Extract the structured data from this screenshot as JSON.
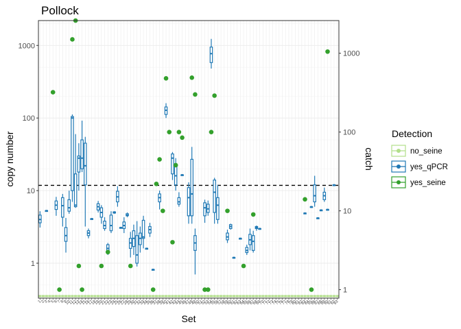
{
  "chart_data": {
    "type": "box",
    "title": "Pollock",
    "xlabel": "Set",
    "ylabel": "copy number",
    "y2label": "catch",
    "y_scale": "log10",
    "ylim": [
      0.33,
      2200
    ],
    "yticks": [
      1,
      10,
      100,
      1000
    ],
    "ytick_labels": [
      "1",
      "10",
      "100",
      "1000"
    ],
    "y2_scale": "log10",
    "y2lim": [
      0.78,
      2600
    ],
    "y2ticks": [
      1,
      10,
      100,
      1000
    ],
    "y2tick_labels": [
      "1",
      "10",
      "100",
      "1000"
    ],
    "threshold_line": 11.8,
    "legend": {
      "title": "Detection",
      "position": "right",
      "entries": [
        {
          "label": "no_seine",
          "color": "#b2df8a"
        },
        {
          "label": "yes_qPCR",
          "color": "#1f78b4"
        },
        {
          "label": "yes_seine",
          "color": "#33a02c"
        }
      ]
    },
    "n_sets": 93,
    "boxes": [
      {
        "set": 1,
        "min": 3.1,
        "q1": 3.6,
        "median": 4.0,
        "q3": 4.6,
        "max": 5.2
      },
      {
        "set": 3,
        "min": 5.3,
        "q1": 5.3,
        "median": 5.3,
        "q3": 5.3,
        "max": 5.3
      },
      {
        "set": 6,
        "min": 4.5,
        "q1": 5.5,
        "median": 6.3,
        "q3": 7.2,
        "max": 8.2
      },
      {
        "set": 8,
        "min": 3.2,
        "q1": 4.3,
        "median": 6.2,
        "q3": 8.0,
        "max": 9.0
      },
      {
        "set": 9,
        "min": 1.4,
        "q1": 2.0,
        "median": 2.4,
        "q3": 3.1,
        "max": 4.2
      },
      {
        "set": 10,
        "min": 4.8,
        "q1": 5.2,
        "median": 5.8,
        "q3": 7.5,
        "max": 10.0
      },
      {
        "set": 11,
        "min": 7.0,
        "q1": 10.0,
        "median": 100.0,
        "q3": 105.0,
        "max": 112.0
      },
      {
        "set": 12,
        "min": 5.8,
        "q1": 6.0,
        "median": 6.3,
        "q3": 17.0,
        "max": 60.0
      },
      {
        "set": 13,
        "min": 10.0,
        "q1": 18.0,
        "median": 28.0,
        "q3": 30.0,
        "max": 45.0
      },
      {
        "set": 14,
        "min": 18.0,
        "q1": 20.0,
        "median": 28.0,
        "q3": 50.0,
        "max": 92.0
      },
      {
        "set": 15,
        "min": 3.2,
        "q1": 12.0,
        "median": 22.0,
        "q3": 45.0,
        "max": 55.0
      },
      {
        "set": 16,
        "min": 2.2,
        "q1": 2.4,
        "median": 2.6,
        "q3": 2.8,
        "max": 3.0
      },
      {
        "set": 17,
        "min": 4.1,
        "q1": 4.1,
        "median": 4.1,
        "q3": 4.1,
        "max": 4.1
      },
      {
        "set": 19,
        "min": 5.0,
        "q1": 5.4,
        "median": 6.0,
        "q3": 6.6,
        "max": 7.2
      },
      {
        "set": 20,
        "min": 3.5,
        "q1": 4.3,
        "median": 5.0,
        "q3": 5.8,
        "max": 6.3
      },
      {
        "set": 21,
        "min": 2.8,
        "q1": 3.0,
        "median": 3.3,
        "q3": 3.8,
        "max": 4.3
      },
      {
        "set": 22,
        "min": 1.3,
        "q1": 1.5,
        "median": 1.6,
        "q3": 1.8,
        "max": 1.9
      },
      {
        "set": 23,
        "min": 2.6,
        "q1": 2.8,
        "median": 3.3,
        "q3": 4.6,
        "max": 5.2
      },
      {
        "set": 24,
        "min": 4.8,
        "q1": 4.9,
        "median": 5.0,
        "q3": 5.1,
        "max": 5.2
      },
      {
        "set": 25,
        "min": 6.0,
        "q1": 7.0,
        "median": 8.2,
        "q3": 9.8,
        "max": 11.5
      },
      {
        "set": 26,
        "min": 3.1,
        "q1": 3.1,
        "median": 3.1,
        "q3": 3.1,
        "max": 3.1
      },
      {
        "set": 27,
        "min": 2.6,
        "q1": 3.0,
        "median": 3.3,
        "q3": 3.7,
        "max": 4.3
      },
      {
        "set": 28,
        "min": 4.3,
        "q1": 4.5,
        "median": 4.6,
        "q3": 4.8,
        "max": 5.0
      },
      {
        "set": 29,
        "min": 1.2,
        "q1": 1.6,
        "median": 1.9,
        "q3": 2.2,
        "max": 2.7
      },
      {
        "set": 30,
        "min": 1.3,
        "q1": 1.7,
        "median": 2.2,
        "q3": 2.8,
        "max": 3.4
      },
      {
        "set": 31,
        "min": 0.9,
        "q1": 1.0,
        "median": 1.3,
        "q3": 2.4,
        "max": 3.8
      },
      {
        "set": 32,
        "min": 1.4,
        "q1": 1.8,
        "median": 2.2,
        "q3": 2.6,
        "max": 3.2
      },
      {
        "set": 33,
        "min": 1.6,
        "q1": 2.2,
        "median": 2.3,
        "q3": 3.9,
        "max": 4.5
      },
      {
        "set": 34,
        "min": 1.6,
        "q1": 1.6,
        "median": 1.6,
        "q3": 1.6,
        "max": 1.6
      },
      {
        "set": 35,
        "min": 2.3,
        "q1": 2.6,
        "median": 2.9,
        "q3": 3.2,
        "max": 3.6
      },
      {
        "set": 36,
        "min": 0.82,
        "q1": 0.82,
        "median": 0.82,
        "q3": 0.82,
        "max": 0.82
      },
      {
        "set": 38,
        "min": 5.5,
        "q1": 7.0,
        "median": 8.0,
        "q3": 9.0,
        "max": 10.0
      },
      {
        "set": 40,
        "min": 100.0,
        "q1": 112.0,
        "median": 128.0,
        "q3": 142.0,
        "max": 160.0
      },
      {
        "set": 42,
        "min": 14.0,
        "q1": 17.0,
        "median": 28.0,
        "q3": 32.0,
        "max": 34.0
      },
      {
        "set": 43,
        "min": 10.0,
        "q1": 12.0,
        "median": 16.0,
        "q3": 22.0,
        "max": 28.0
      },
      {
        "set": 44,
        "min": 6.0,
        "q1": 6.5,
        "median": 7.0,
        "q3": 8.0,
        "max": 9.5
      },
      {
        "set": 45,
        "min": 16.5,
        "q1": 16.5,
        "median": 16.5,
        "q3": 16.5,
        "max": 16.5
      },
      {
        "set": 47,
        "min": 3.5,
        "q1": 4.5,
        "median": 8.0,
        "q3": 11.0,
        "max": 13.0
      },
      {
        "set": 48,
        "min": 3.5,
        "q1": 4.5,
        "median": 9.0,
        "q3": 27.0,
        "max": 40.0
      },
      {
        "set": 49,
        "min": 0.7,
        "q1": 1.5,
        "median": 1.9,
        "q3": 2.4,
        "max": 3.0
      },
      {
        "set": 52,
        "min": 3.6,
        "q1": 4.5,
        "median": 5.8,
        "q3": 6.8,
        "max": 7.5
      },
      {
        "set": 53,
        "min": 4.5,
        "q1": 5.0,
        "median": 5.6,
        "q3": 6.5,
        "max": 7.3
      },
      {
        "set": 54,
        "min": 480.0,
        "q1": 580.0,
        "median": 770.0,
        "q3": 950.0,
        "max": 1230.0
      },
      {
        "set": 55,
        "min": 3.5,
        "q1": 5.0,
        "median": 9.5,
        "q3": 14.0,
        "max": 15.0
      },
      {
        "set": 56,
        "min": 3.5,
        "q1": 4.0,
        "median": 6.3,
        "q3": 8.0,
        "max": 12.0
      },
      {
        "set": 59,
        "min": 1.9,
        "q1": 2.1,
        "median": 2.3,
        "q3": 2.6,
        "max": 2.9
      },
      {
        "set": 60,
        "min": 2.9,
        "q1": 3.0,
        "median": 3.2,
        "q3": 3.4,
        "max": 3.5
      },
      {
        "set": 61,
        "min": 1.2,
        "q1": 1.2,
        "median": 1.2,
        "q3": 1.2,
        "max": 1.2
      },
      {
        "set": 63,
        "min": 2.2,
        "q1": 2.2,
        "median": 2.2,
        "q3": 2.2,
        "max": 2.2
      },
      {
        "set": 65,
        "min": 1.3,
        "q1": 1.4,
        "median": 1.5,
        "q3": 1.65,
        "max": 1.8
      },
      {
        "set": 66,
        "min": 1.5,
        "q1": 1.8,
        "median": 2.1,
        "q3": 2.5,
        "max": 3.0
      },
      {
        "set": 67,
        "min": 1.4,
        "q1": 1.5,
        "median": 2.0,
        "q3": 2.4,
        "max": 2.8
      },
      {
        "set": 68,
        "min": 2.8,
        "q1": 3.0,
        "median": 3.1,
        "q3": 3.2,
        "max": 3.3
      },
      {
        "set": 69,
        "min": 3.0,
        "q1": 3.0,
        "median": 3.0,
        "q3": 3.0,
        "max": 3.0
      },
      {
        "set": 83,
        "min": 4.9,
        "q1": 4.9,
        "median": 4.9,
        "q3": 4.9,
        "max": 4.9
      },
      {
        "set": 85,
        "min": 6.0,
        "q1": 6.0,
        "median": 6.0,
        "q3": 6.0,
        "max": 6.0
      },
      {
        "set": 86,
        "min": 6.0,
        "q1": 7.0,
        "median": 8.5,
        "q3": 12.0,
        "max": 16.0
      },
      {
        "set": 87,
        "min": 4.2,
        "q1": 4.2,
        "median": 4.2,
        "q3": 4.2,
        "max": 4.2
      },
      {
        "set": 88,
        "min": 5.4,
        "q1": 5.4,
        "median": 5.4,
        "q3": 5.4,
        "max": 5.4
      },
      {
        "set": 89,
        "min": 7.0,
        "q1": 7.5,
        "median": 8.5,
        "q3": 9.5,
        "max": 11.0
      },
      {
        "set": 90,
        "min": 5.5,
        "q1": 5.5,
        "median": 5.5,
        "q3": 5.5,
        "max": 5.5
      },
      {
        "set": 92,
        "min": 12.0,
        "q1": 12.0,
        "median": 12.0,
        "q3": 12.0,
        "max": 12.0
      }
    ],
    "catch_points": [
      {
        "set": 5,
        "catch": 320
      },
      {
        "set": 7,
        "catch": 1
      },
      {
        "set": 11,
        "catch": 1500
      },
      {
        "set": 12,
        "catch": 2600
      },
      {
        "set": 13,
        "catch": 2
      },
      {
        "set": 14,
        "catch": 1
      },
      {
        "set": 20,
        "catch": 2
      },
      {
        "set": 22,
        "catch": 3
      },
      {
        "set": 29,
        "catch": 2
      },
      {
        "set": 36,
        "catch": 1
      },
      {
        "set": 37,
        "catch": 22
      },
      {
        "set": 38,
        "catch": 45
      },
      {
        "set": 39,
        "catch": 10
      },
      {
        "set": 40,
        "catch": 480
      },
      {
        "set": 41,
        "catch": 100
      },
      {
        "set": 42,
        "catch": 4
      },
      {
        "set": 43,
        "catch": 38
      },
      {
        "set": 44,
        "catch": 100
      },
      {
        "set": 45,
        "catch": 85
      },
      {
        "set": 48,
        "catch": 490
      },
      {
        "set": 49,
        "catch": 300
      },
      {
        "set": 52,
        "catch": 1
      },
      {
        "set": 53,
        "catch": 1
      },
      {
        "set": 54,
        "catch": 100
      },
      {
        "set": 55,
        "catch": 290
      },
      {
        "set": 59,
        "catch": 10
      },
      {
        "set": 64,
        "catch": 2
      },
      {
        "set": 67,
        "catch": 9
      },
      {
        "set": 83,
        "catch": 14
      },
      {
        "set": 85,
        "catch": 1
      },
      {
        "set": 90,
        "catch": 1050
      }
    ]
  }
}
